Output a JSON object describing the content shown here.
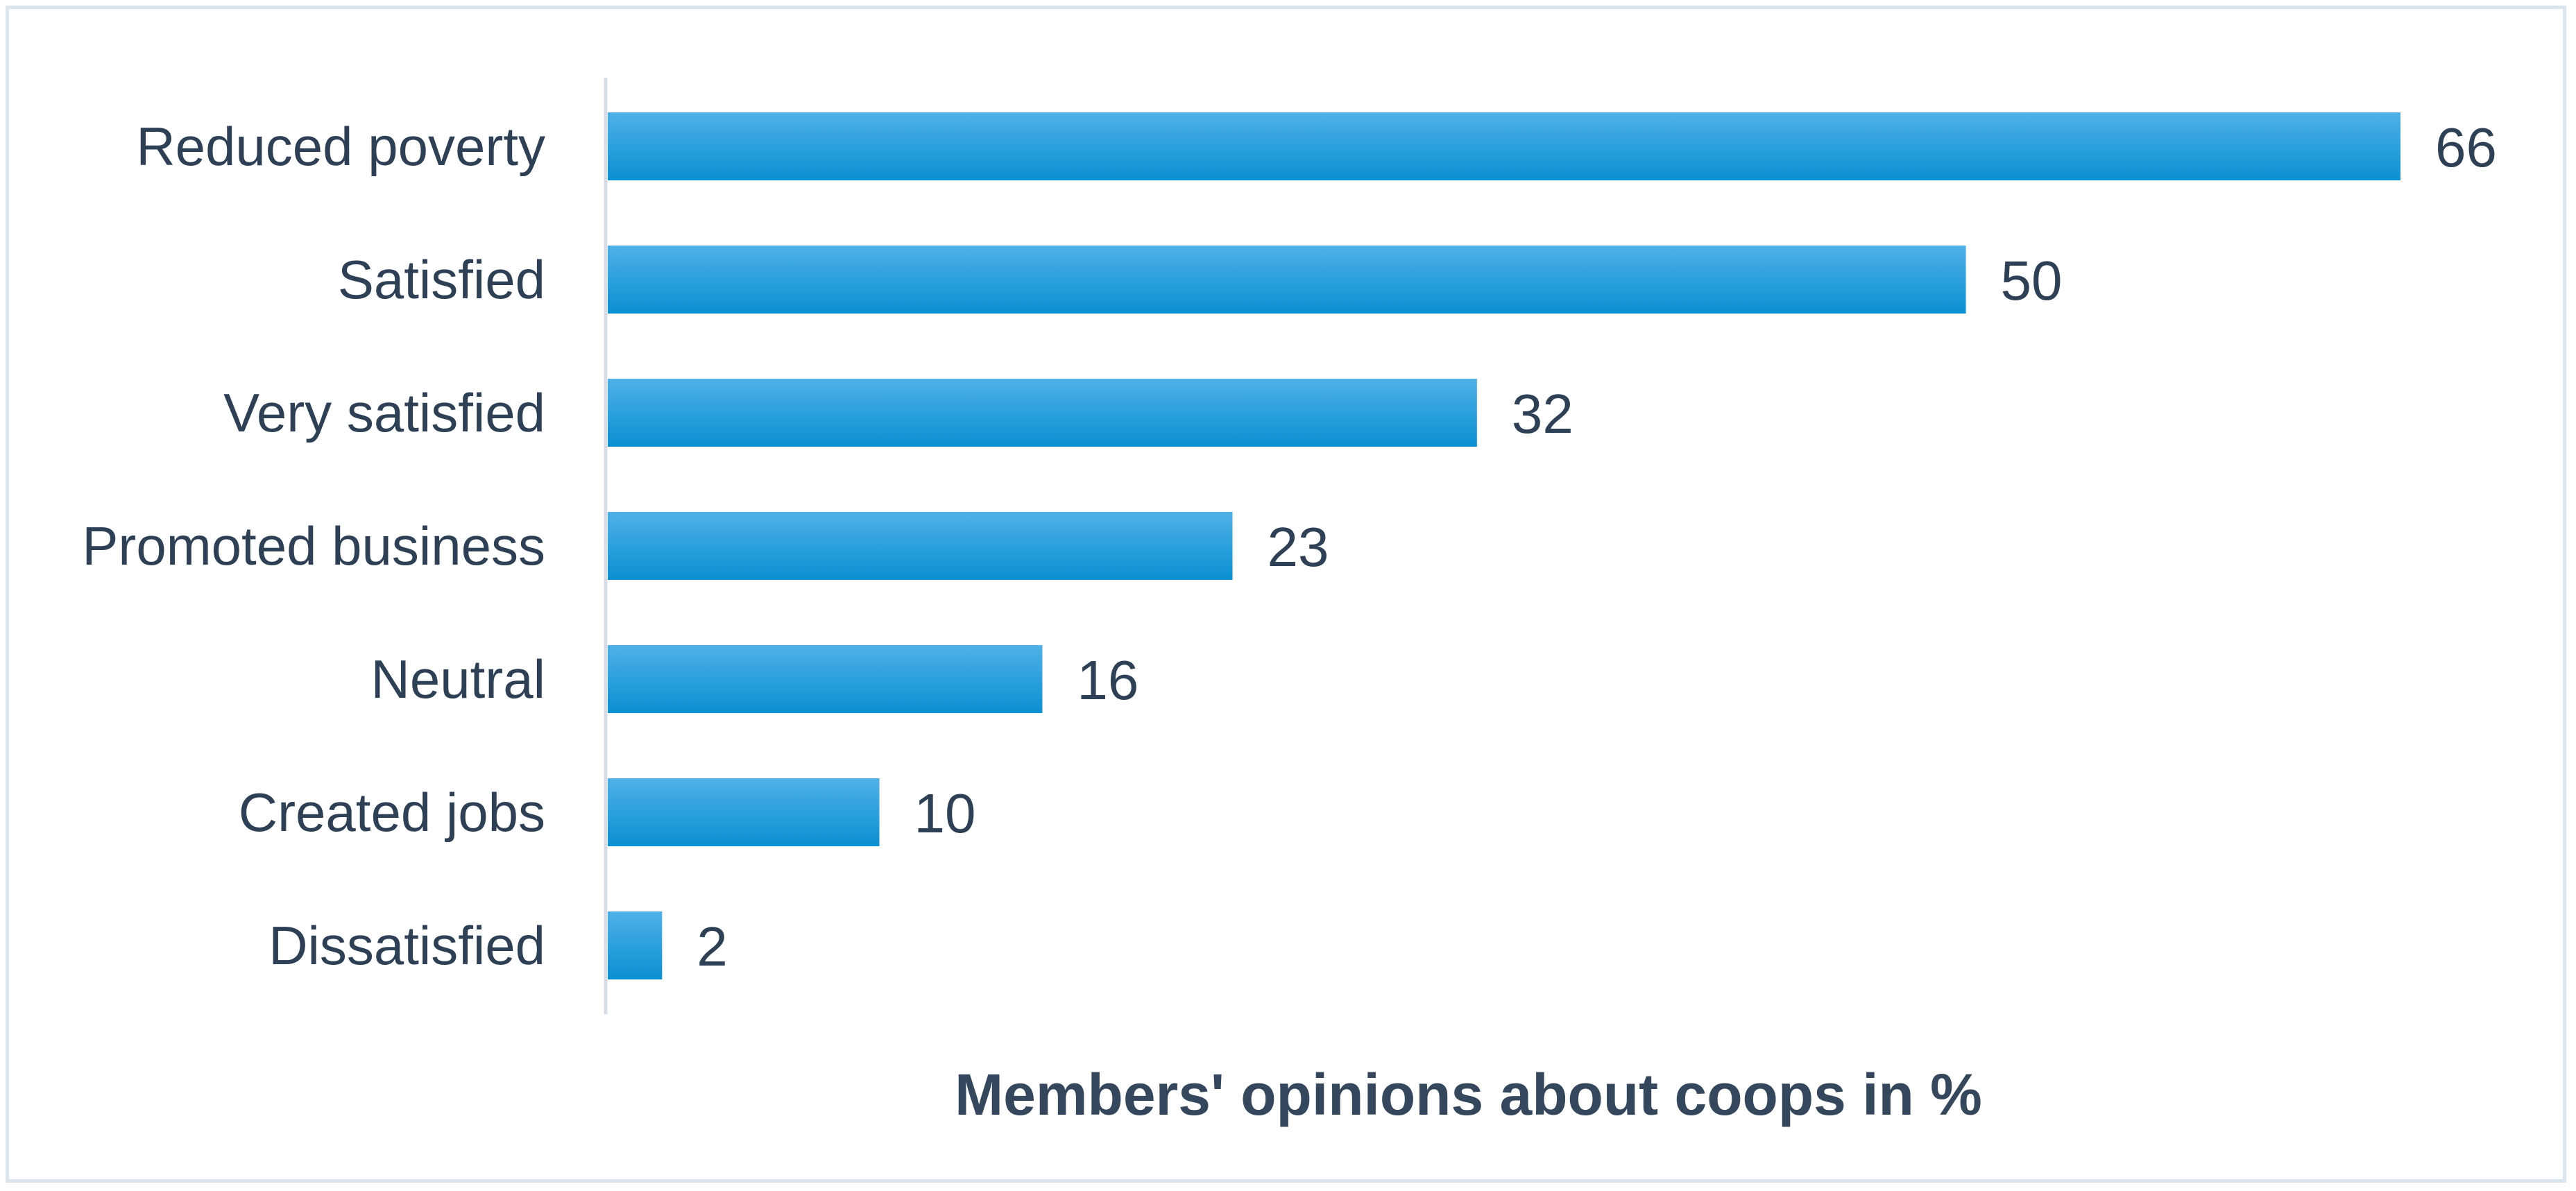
{
  "chart_data": {
    "type": "bar",
    "orientation": "horizontal",
    "title": "Members' opinions about coops in %",
    "xlabel": "",
    "ylabel": "",
    "categories": [
      "Reduced poverty",
      "Satisfied",
      "Very satisfied",
      "Promoted business",
      "Neutral",
      "Created jobs",
      "Dissatisfied"
    ],
    "values": [
      66,
      50,
      32,
      23,
      16,
      10,
      2
    ],
    "xlim": [
      0,
      66
    ],
    "grid": false,
    "legend": "none",
    "data_labels": true,
    "colors": {
      "bar": "#1a9ad9",
      "bar_light": "#4fb0e6",
      "text": "#2d4056",
      "axis": "#d6dde6",
      "frame": "#dbe5ef"
    }
  }
}
